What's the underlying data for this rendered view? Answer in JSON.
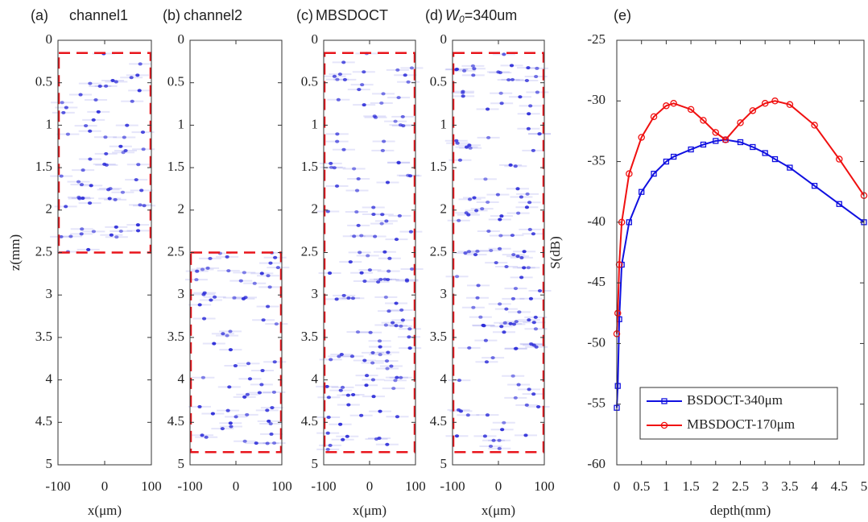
{
  "chart_data": [
    {
      "type": "image",
      "panel_label": "(a)",
      "title": "channel1",
      "xlabel": "x(μm)",
      "ylabel": "z(mm)",
      "xlim": [
        -100,
        100
      ],
      "xticks": [
        -100,
        0,
        100
      ],
      "ylim": [
        0,
        5
      ],
      "yticks": [
        0,
        0.5,
        1,
        1.5,
        2,
        2.5,
        3,
        3.5,
        4,
        4.5,
        5
      ],
      "box_z": [
        0.15,
        2.5
      ],
      "box_color": "#e8141b",
      "dot_color": "#2a2ad8"
    },
    {
      "type": "image",
      "panel_label": "(b)",
      "title": "channel2",
      "xlim": [
        -100,
        100
      ],
      "xticks": [
        -100,
        0,
        100
      ],
      "ylim": [
        0,
        5
      ],
      "yticks": [
        0,
        0.5,
        1,
        1.5,
        2,
        2.5,
        3,
        3.5,
        4,
        4.5,
        5
      ],
      "box_z": [
        2.5,
        4.85
      ],
      "box_color": "#e8141b",
      "dot_color": "#2a2ad8"
    },
    {
      "type": "image",
      "panel_label": "(c)",
      "title": "MBSDOCT",
      "xlabel": "x(μm)",
      "xlim": [
        -100,
        100
      ],
      "xticks": [
        -100,
        0,
        100
      ],
      "ylim": [
        0,
        5
      ],
      "yticks": [
        0,
        0.5,
        1,
        1.5,
        2,
        2.5,
        3,
        3.5,
        4,
        4.5,
        5
      ],
      "box_z": [
        0.15,
        4.85
      ],
      "box_color": "#e8141b",
      "dot_color": "#2a2ad8"
    },
    {
      "type": "image",
      "panel_label": "(d)",
      "title_parts": [
        "W",
        "0",
        "=340um"
      ],
      "xlabel": "x(μm)",
      "xlim": [
        -100,
        100
      ],
      "xticks": [
        -100,
        0,
        100
      ],
      "ylim": [
        0,
        5
      ],
      "yticks": [
        0,
        0.5,
        1,
        1.5,
        2,
        2.5,
        3,
        3.5,
        4,
        4.5,
        5
      ],
      "box_z": [
        0.15,
        4.85
      ],
      "box_color": "#e8141b",
      "dot_color": "#2a2ad8"
    },
    {
      "type": "line",
      "panel_label": "(e)",
      "xlabel": "depth(mm)",
      "ylabel": "S(dB)",
      "xlim": [
        0,
        5
      ],
      "xticks": [
        0,
        0.5,
        1,
        1.5,
        2,
        2.5,
        3,
        3.5,
        4,
        4.5,
        5
      ],
      "ylim": [
        -60,
        -25
      ],
      "yticks": [
        -60,
        -55,
        -50,
        -45,
        -40,
        -35,
        -30,
        -25
      ],
      "legend": "lower right",
      "x": [
        0,
        0.02,
        0.05,
        0.1,
        0.25,
        0.5,
        0.75,
        1,
        1.15,
        1.5,
        1.75,
        2,
        2.2,
        2.5,
        2.75,
        3,
        3.2,
        3.5,
        4,
        4.5,
        5
      ],
      "series": [
        {
          "name": "BSDOCT-340μm",
          "color": "#1010e0",
          "marker": "square",
          "values": [
            -55.3,
            -53.5,
            -48,
            -43.5,
            -40,
            -37.5,
            -36,
            -35,
            -34.6,
            -34,
            -33.6,
            -33.3,
            -33.2,
            -33.4,
            -33.8,
            -34.3,
            -34.8,
            -35.5,
            -37,
            -38.5,
            -40
          ]
        },
        {
          "name": "MBSDOCT-170μm",
          "color": "#f01010",
          "marker": "circle",
          "values": [
            -49.2,
            -47.5,
            -43.5,
            -40,
            -36,
            -33,
            -31.3,
            -30.4,
            -30.2,
            -30.7,
            -31.6,
            -32.6,
            -33.2,
            -31.8,
            -30.8,
            -30.2,
            -30,
            -30.3,
            -32,
            -34.8,
            -37.8
          ]
        }
      ]
    }
  ]
}
